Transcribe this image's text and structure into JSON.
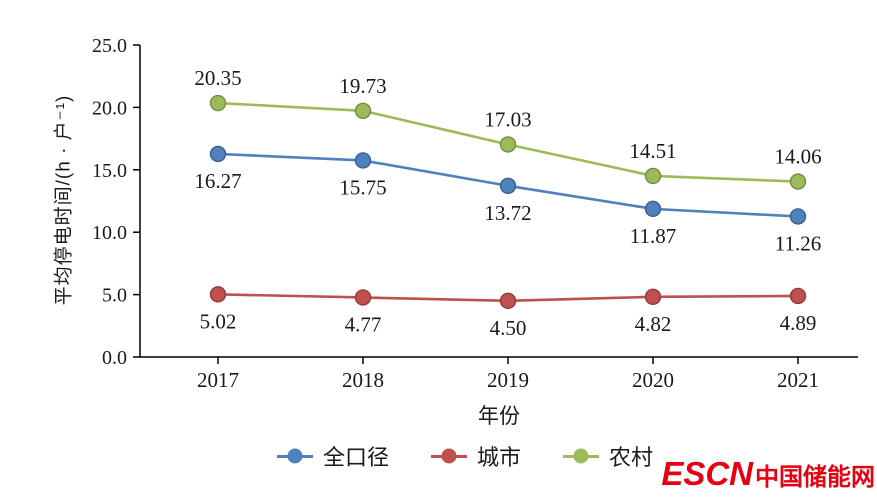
{
  "chart_data": {
    "type": "line",
    "categories": [
      "2017",
      "2018",
      "2019",
      "2020",
      "2021"
    ],
    "series": [
      {
        "name": "全口径",
        "values": [
          16.27,
          15.75,
          13.72,
          11.87,
          11.26
        ],
        "color": "#4f81bd",
        "label_position": "below"
      },
      {
        "name": "城市",
        "values": [
          5.02,
          4.77,
          4.5,
          4.82,
          4.89
        ],
        "color": "#c0504d",
        "label_position": "below"
      },
      {
        "name": "农村",
        "values": [
          20.35,
          19.73,
          17.03,
          14.51,
          14.06
        ],
        "color": "#9bbb59",
        "label_position": "above"
      }
    ],
    "title": "",
    "xlabel": "年份",
    "ylabel": "平均停电时间/(h · 户⁻¹)",
    "ylim": [
      0,
      25
    ],
    "ytick_step": 5,
    "ytick_labels": [
      "0.0",
      "5.0",
      "10.0",
      "15.0",
      "20.0",
      "25.0"
    ],
    "grid": false,
    "legend_position": "bottom",
    "marker": "circle",
    "value_label_decimals": 2
  },
  "watermark": {
    "brand": "ESCN",
    "text": "中国储能网",
    "color": "#e60012"
  }
}
